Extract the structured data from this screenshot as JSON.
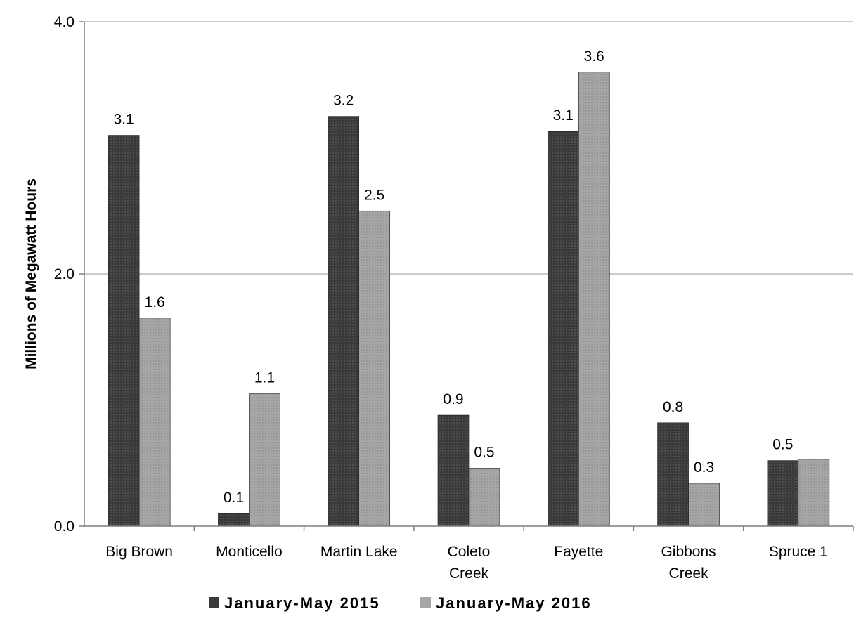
{
  "chart_data": {
    "type": "bar",
    "title": "",
    "xlabel": "",
    "ylabel": "Millions of Megawatt Hours",
    "ylim": [
      0,
      4.0
    ],
    "yticks": [
      0.0,
      2.0,
      4.0
    ],
    "ytick_labels": [
      "0.0",
      "2.0",
      "4.0"
    ],
    "grid": true,
    "legend_position": "bottom",
    "categories": [
      [
        "Big Brown"
      ],
      [
        "Monticello"
      ],
      [
        "Martin Lake"
      ],
      [
        "Coleto",
        "Creek"
      ],
      [
        "Fayette"
      ],
      [
        "Gibbons",
        "Creek"
      ],
      [
        "Spruce 1"
      ]
    ],
    "series": [
      {
        "name": "January-May 2015",
        "color": "#3a3a3a",
        "values": [
          3.1,
          0.1,
          3.25,
          0.88,
          3.13,
          0.82,
          0.52
        ],
        "labels": [
          "3.1",
          "0.1",
          "3.2",
          "0.9",
          "3.1",
          "0.8",
          "0.5"
        ]
      },
      {
        "name": "January-May 2016",
        "color": "#a6a6a6",
        "values": [
          1.65,
          1.05,
          2.5,
          0.46,
          3.6,
          0.34,
          0.53
        ],
        "labels": [
          "1.6",
          "1.1",
          "2.5",
          "0.5",
          "3.6",
          "0.3",
          ""
        ]
      }
    ]
  }
}
